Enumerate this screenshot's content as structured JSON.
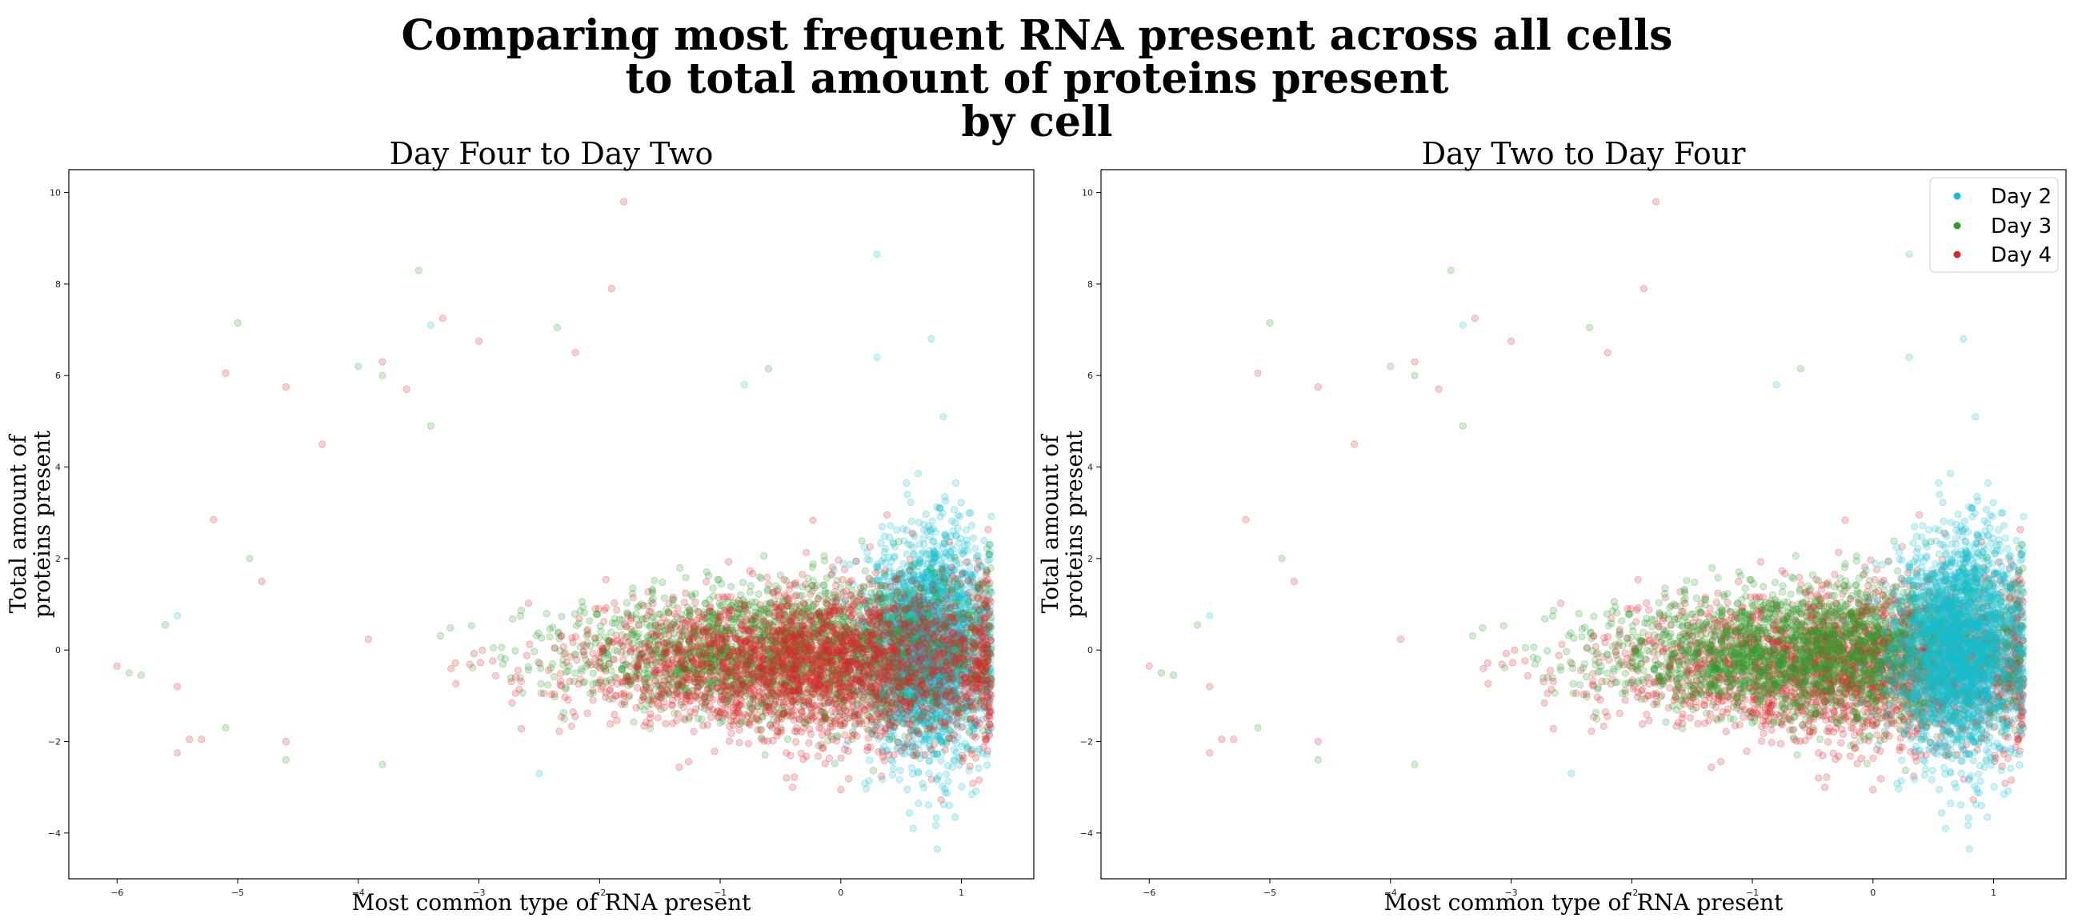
{
  "chart_data": {
    "type": "scatter",
    "title_lines": [
      "Comparing most frequent RNA present across all cells",
      "to total amount of proteins present",
      "by cell"
    ],
    "xlabel": "Most common type of RNA present",
    "ylabel_lines": [
      "Total amount of",
      "proteins present"
    ],
    "xlim": [
      -6.4,
      1.6
    ],
    "ylim": [
      -5,
      10.5
    ],
    "x_ticks": [
      -6,
      -5,
      -4,
      -3,
      -2,
      -1,
      0,
      1
    ],
    "y_ticks": [
      -4,
      -2,
      0,
      2,
      4,
      6,
      8,
      10
    ],
    "grid": false,
    "legend_placement": "top-right",
    "series": [
      {
        "name": "Day 2",
        "color": "#17becf",
        "cloud": {
          "x_center": 0.72,
          "x_spread": 0.26,
          "y_center": 0.1,
          "y_spread": 1.2,
          "count": 2600
        }
      },
      {
        "name": "Day 3",
        "color": "#2ca02c",
        "cloud": {
          "x_center": -0.45,
          "x_spread": 0.85,
          "y_center": -0.05,
          "y_spread": 0.9,
          "count": 2200
        }
      },
      {
        "name": "Day 4",
        "color": "#d62728",
        "cloud": {
          "x_center": -0.15,
          "x_spread": 0.95,
          "y_center": -0.35,
          "y_spread": 0.95,
          "count": 2800
        }
      }
    ],
    "outliers": [
      {
        "series": "Day 4",
        "x": -1.8,
        "y": 9.8
      },
      {
        "series": "Day 2",
        "x": 0.3,
        "y": 8.65
      },
      {
        "series": "Day 3",
        "x": -3.5,
        "y": 8.3
      },
      {
        "series": "Day 4",
        "x": -1.9,
        "y": 7.9
      },
      {
        "series": "Day 3",
        "x": -5.0,
        "y": 7.15
      },
      {
        "series": "Day 4",
        "x": -3.3,
        "y": 7.25
      },
      {
        "series": "Day 2",
        "x": -3.4,
        "y": 7.1
      },
      {
        "series": "Day 3",
        "x": -2.35,
        "y": 7.05
      },
      {
        "series": "Day 4",
        "x": -3.0,
        "y": 6.75
      },
      {
        "series": "Day 4",
        "x": -2.2,
        "y": 6.5
      },
      {
        "series": "Day 2",
        "x": 0.75,
        "y": 6.8
      },
      {
        "series": "Day 2",
        "x": 0.3,
        "y": 6.4
      },
      {
        "series": "Day 4",
        "x": -3.8,
        "y": 6.3
      },
      {
        "series": "Day 3",
        "x": -4.0,
        "y": 6.2
      },
      {
        "series": "Day 4",
        "x": -5.1,
        "y": 6.05
      },
      {
        "series": "Day 3",
        "x": -3.8,
        "y": 6.0
      },
      {
        "series": "Day 4",
        "x": -4.6,
        "y": 5.75
      },
      {
        "series": "Day 4",
        "x": -3.6,
        "y": 5.7
      },
      {
        "series": "Day 2",
        "x": -0.8,
        "y": 5.8
      },
      {
        "series": "Day 3",
        "x": -0.6,
        "y": 6.15
      },
      {
        "series": "Day 2",
        "x": 0.85,
        "y": 5.1
      },
      {
        "series": "Day 4",
        "x": -4.3,
        "y": 4.5
      },
      {
        "series": "Day 3",
        "x": -3.4,
        "y": 4.9
      },
      {
        "series": "Day 4",
        "x": -5.2,
        "y": 2.85
      },
      {
        "series": "Day 3",
        "x": -4.9,
        "y": 2.0
      },
      {
        "series": "Day 4",
        "x": -4.8,
        "y": 1.5
      },
      {
        "series": "Day 3",
        "x": -5.6,
        "y": 0.55
      },
      {
        "series": "Day 2",
        "x": -5.5,
        "y": 0.75
      },
      {
        "series": "Day 4",
        "x": -6.0,
        "y": -0.35
      },
      {
        "series": "Day 3",
        "x": -5.9,
        "y": -0.5
      },
      {
        "series": "Day 3",
        "x": -5.8,
        "y": -0.55
      },
      {
        "series": "Day 4",
        "x": -5.5,
        "y": -0.8
      },
      {
        "series": "Day 3",
        "x": -5.1,
        "y": -1.7
      },
      {
        "series": "Day 4",
        "x": -5.3,
        "y": -1.95
      },
      {
        "series": "Day 4",
        "x": -5.4,
        "y": -1.95
      },
      {
        "series": "Day 4",
        "x": -5.5,
        "y": -2.25
      },
      {
        "series": "Day 3",
        "x": -4.6,
        "y": -2.4
      },
      {
        "series": "Day 4",
        "x": -4.6,
        "y": -2.0
      },
      {
        "series": "Day 3",
        "x": -3.8,
        "y": -2.5
      },
      {
        "series": "Day 2",
        "x": -2.5,
        "y": -2.7
      },
      {
        "series": "Day 2",
        "x": 0.6,
        "y": -3.9
      },
      {
        "series": "Day 2",
        "x": 0.8,
        "y": -4.35
      },
      {
        "series": "Day 2",
        "x": 0.9,
        "y": -3.4
      },
      {
        "series": "Day 2",
        "x": 0.55,
        "y": -3.05
      },
      {
        "series": "Day 4",
        "x": 0.0,
        "y": -3.05
      },
      {
        "series": "Day 4",
        "x": -0.4,
        "y": -3.0
      }
    ],
    "panels": [
      {
        "title": "Day Four to Day Two",
        "draw_order": [
          "Day 2",
          "Day 3",
          "Day 4"
        ],
        "show_legend": false
      },
      {
        "title": "Day Two to Day Four",
        "draw_order": [
          "Day 4",
          "Day 3",
          "Day 2"
        ],
        "show_legend": true
      }
    ]
  }
}
